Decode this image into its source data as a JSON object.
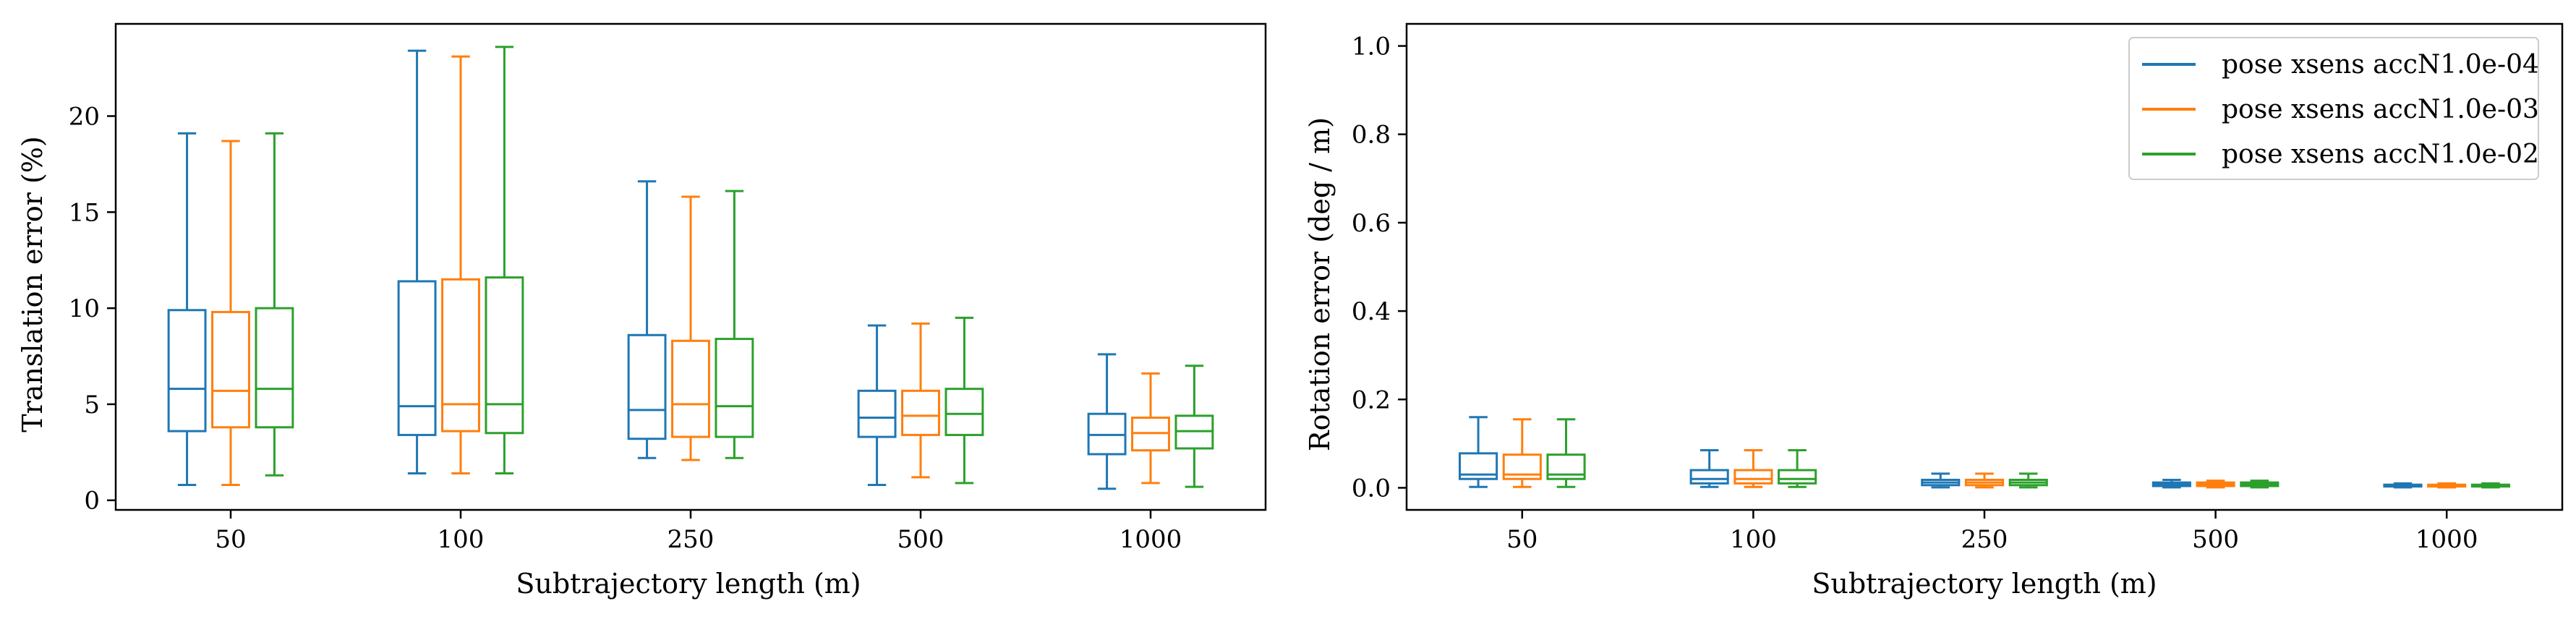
{
  "chart_data": [
    {
      "type": "box",
      "xlabel": "Subtrajectory length (m)",
      "ylabel": "Translation error (%)",
      "categories": [
        "50",
        "100",
        "250",
        "500",
        "1000"
      ],
      "ylim": [
        -0.5,
        24.8
      ],
      "yticks": [
        0,
        5,
        10,
        15,
        20
      ],
      "grid": false,
      "series": [
        {
          "name": "pose xsens accN1.0e-04",
          "color": "#1f77b4",
          "boxes": [
            {
              "whislo": 0.8,
              "q1": 3.6,
              "med": 5.8,
              "q3": 9.9,
              "whishi": 19.1
            },
            {
              "whislo": 1.4,
              "q1": 3.4,
              "med": 4.9,
              "q3": 11.4,
              "whishi": 23.4
            },
            {
              "whislo": 2.2,
              "q1": 3.2,
              "med": 4.7,
              "q3": 8.6,
              "whishi": 16.6
            },
            {
              "whislo": 0.8,
              "q1": 3.3,
              "med": 4.3,
              "q3": 5.7,
              "whishi": 9.1
            },
            {
              "whislo": 0.6,
              "q1": 2.4,
              "med": 3.4,
              "q3": 4.5,
              "whishi": 7.6
            }
          ]
        },
        {
          "name": "pose xsens accN1.0e-03",
          "color": "#ff7f0e",
          "boxes": [
            {
              "whislo": 0.8,
              "q1": 3.8,
              "med": 5.7,
              "q3": 9.8,
              "whishi": 18.7
            },
            {
              "whislo": 1.4,
              "q1": 3.6,
              "med": 5.0,
              "q3": 11.5,
              "whishi": 23.1
            },
            {
              "whislo": 2.1,
              "q1": 3.3,
              "med": 5.0,
              "q3": 8.3,
              "whishi": 15.8
            },
            {
              "whislo": 1.2,
              "q1": 3.4,
              "med": 4.4,
              "q3": 5.7,
              "whishi": 9.2
            },
            {
              "whislo": 0.9,
              "q1": 2.6,
              "med": 3.5,
              "q3": 4.3,
              "whishi": 6.6
            }
          ]
        },
        {
          "name": "pose xsens accN1.0e-02",
          "color": "#2ca02c",
          "boxes": [
            {
              "whislo": 1.3,
              "q1": 3.8,
              "med": 5.8,
              "q3": 10.0,
              "whishi": 19.1
            },
            {
              "whislo": 1.4,
              "q1": 3.5,
              "med": 5.0,
              "q3": 11.6,
              "whishi": 23.6
            },
            {
              "whislo": 2.2,
              "q1": 3.3,
              "med": 4.9,
              "q3": 8.4,
              "whishi": 16.1
            },
            {
              "whislo": 0.9,
              "q1": 3.4,
              "med": 4.5,
              "q3": 5.8,
              "whishi": 9.5
            },
            {
              "whislo": 0.7,
              "q1": 2.7,
              "med": 3.6,
              "q3": 4.4,
              "whishi": 7.0
            }
          ]
        }
      ]
    },
    {
      "type": "box",
      "xlabel": "Subtrajectory length (m)",
      "ylabel": "Rotation error (deg / m)",
      "categories": [
        "50",
        "100",
        "250",
        "500",
        "1000"
      ],
      "ylim": [
        -0.05,
        1.05
      ],
      "yticks": [
        0.0,
        0.2,
        0.4,
        0.6,
        0.8,
        1.0
      ],
      "ytick_labels": [
        "0.0",
        "0.2",
        "0.4",
        "0.6",
        "0.8",
        "1.0"
      ],
      "grid": false,
      "legend": "top-right",
      "series": [
        {
          "name": "pose xsens accN1.0e-04",
          "color": "#1f77b4",
          "boxes": [
            {
              "whislo": 0.002,
              "q1": 0.02,
              "med": 0.03,
              "q3": 0.078,
              "whishi": 0.16
            },
            {
              "whislo": 0.002,
              "q1": 0.01,
              "med": 0.02,
              "q3": 0.04,
              "whishi": 0.085
            },
            {
              "whislo": 0.001,
              "q1": 0.006,
              "med": 0.012,
              "q3": 0.018,
              "whishi": 0.032
            },
            {
              "whislo": 0.001,
              "q1": 0.004,
              "med": 0.008,
              "q3": 0.012,
              "whishi": 0.018
            },
            {
              "whislo": 0.001,
              "q1": 0.003,
              "med": 0.005,
              "q3": 0.007,
              "whishi": 0.01
            }
          ]
        },
        {
          "name": "pose xsens accN1.0e-03",
          "color": "#ff7f0e",
          "boxes": [
            {
              "whislo": 0.002,
              "q1": 0.02,
              "med": 0.03,
              "q3": 0.075,
              "whishi": 0.155
            },
            {
              "whislo": 0.002,
              "q1": 0.01,
              "med": 0.02,
              "q3": 0.04,
              "whishi": 0.085
            },
            {
              "whislo": 0.001,
              "q1": 0.006,
              "med": 0.012,
              "q3": 0.018,
              "whishi": 0.032
            },
            {
              "whislo": 0.001,
              "q1": 0.004,
              "med": 0.008,
              "q3": 0.012,
              "whishi": 0.016
            },
            {
              "whislo": 0.001,
              "q1": 0.003,
              "med": 0.005,
              "q3": 0.007,
              "whishi": 0.01
            }
          ]
        },
        {
          "name": "pose xsens accN1.0e-02",
          "color": "#2ca02c",
          "boxes": [
            {
              "whislo": 0.002,
              "q1": 0.02,
              "med": 0.03,
              "q3": 0.075,
              "whishi": 0.155
            },
            {
              "whislo": 0.002,
              "q1": 0.01,
              "med": 0.02,
              "q3": 0.04,
              "whishi": 0.085
            },
            {
              "whislo": 0.001,
              "q1": 0.006,
              "med": 0.012,
              "q3": 0.018,
              "whishi": 0.032
            },
            {
              "whislo": 0.001,
              "q1": 0.004,
              "med": 0.008,
              "q3": 0.012,
              "whishi": 0.016
            },
            {
              "whislo": 0.001,
              "q1": 0.003,
              "med": 0.005,
              "q3": 0.007,
              "whishi": 0.01
            }
          ]
        }
      ]
    }
  ]
}
